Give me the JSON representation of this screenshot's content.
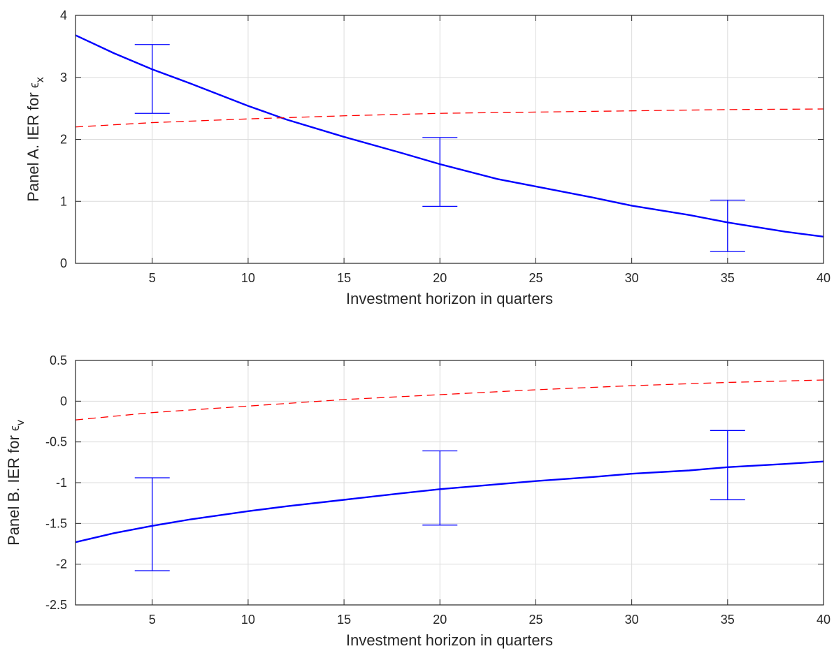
{
  "chart_data": [
    {
      "type": "line",
      "panel": "A",
      "xlabel": "Investment horizon in quarters",
      "ylabel_text": "Panel A. IER for ",
      "ylabel_symbol": "ϵ",
      "ylabel_subscript": "x",
      "xlim": [
        1,
        40
      ],
      "ylim": [
        0,
        4
      ],
      "xticks": [
        5,
        10,
        15,
        20,
        25,
        30,
        35,
        40
      ],
      "yticks": [
        0,
        1,
        2,
        3,
        4
      ],
      "ytick_labels": [
        "0",
        "1",
        "2",
        "3",
        "4"
      ],
      "grid": true,
      "series": [
        {
          "style": "solid",
          "color": "#0000ff",
          "x": [
            1,
            3,
            5,
            7,
            10,
            12,
            15,
            18,
            20,
            23,
            25,
            28,
            30,
            33,
            35,
            38,
            40
          ],
          "y": [
            3.68,
            3.39,
            3.13,
            2.9,
            2.54,
            2.32,
            2.04,
            1.78,
            1.6,
            1.36,
            1.24,
            1.06,
            0.93,
            0.78,
            0.66,
            0.51,
            0.43
          ]
        },
        {
          "style": "dashed",
          "color": "#ff0000",
          "x": [
            1,
            5,
            10,
            15,
            20,
            25,
            30,
            35,
            40
          ],
          "y": [
            2.2,
            2.27,
            2.33,
            2.38,
            2.42,
            2.44,
            2.46,
            2.48,
            2.49
          ]
        }
      ],
      "errorbars": [
        {
          "x": 5,
          "low": 2.42,
          "high": 3.53
        },
        {
          "x": 20,
          "low": 0.92,
          "high": 2.03
        },
        {
          "x": 35,
          "low": 0.19,
          "high": 1.02
        }
      ]
    },
    {
      "type": "line",
      "panel": "B",
      "xlabel": "Investment horizon in quarters",
      "ylabel_text": "Panel B. IER for ",
      "ylabel_symbol": "ϵ",
      "ylabel_subscript": "v",
      "xlim": [
        1,
        40
      ],
      "ylim": [
        -2.5,
        0.5
      ],
      "xticks": [
        5,
        10,
        15,
        20,
        25,
        30,
        35,
        40
      ],
      "yticks": [
        -2.5,
        -2,
        -1.5,
        -1,
        -0.5,
        0,
        0.5
      ],
      "ytick_labels": [
        "-2.5",
        "-2",
        "-1.5",
        "-1",
        "-0.5",
        "0",
        "0.5"
      ],
      "grid": true,
      "series": [
        {
          "style": "solid",
          "color": "#0000ff",
          "x": [
            1,
            3,
            5,
            7,
            10,
            12,
            15,
            18,
            20,
            23,
            25,
            28,
            30,
            33,
            35,
            38,
            40
          ],
          "y": [
            -1.73,
            -1.62,
            -1.53,
            -1.45,
            -1.35,
            -1.29,
            -1.21,
            -1.13,
            -1.08,
            -1.02,
            -0.98,
            -0.93,
            -0.89,
            -0.85,
            -0.81,
            -0.77,
            -0.74
          ]
        },
        {
          "style": "dashed",
          "color": "#ff0000",
          "x": [
            1,
            5,
            10,
            15,
            20,
            25,
            30,
            35,
            40
          ],
          "y": [
            -0.23,
            -0.14,
            -0.06,
            0.02,
            0.08,
            0.14,
            0.19,
            0.23,
            0.26
          ]
        }
      ],
      "errorbars": [
        {
          "x": 5,
          "low": -2.08,
          "high": -0.94
        },
        {
          "x": 20,
          "low": -1.52,
          "high": -0.61
        },
        {
          "x": 35,
          "low": -1.21,
          "high": -0.36
        }
      ]
    }
  ]
}
